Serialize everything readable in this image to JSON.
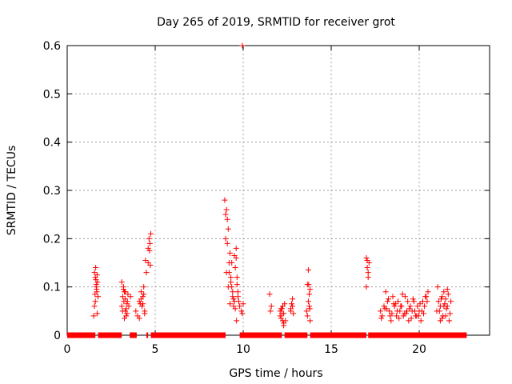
{
  "chart_data": {
    "type": "scatter",
    "title": "Day 265 of 2019, SRMTID for receiver grot",
    "xlabel": "GPS time / hours",
    "ylabel": "SRMTID / TECUs",
    "xlim": [
      0,
      24
    ],
    "ylim": [
      0,
      0.6
    ],
    "xticks": [
      0,
      5,
      10,
      15,
      20
    ],
    "yticks": [
      0,
      0.1,
      0.2,
      0.3,
      0.4,
      0.5,
      0.6
    ],
    "grid": true,
    "marker": "+",
    "colors": {
      "series": "#ff0000",
      "grid": "#a0a0a0",
      "axis": "#000000"
    },
    "series": [
      {
        "name": "SRMTID",
        "x": [
          1.5,
          1.55,
          1.6,
          1.62,
          1.65,
          1.68,
          1.7,
          1.72,
          1.75,
          1.55,
          1.6,
          1.65,
          1.7,
          1.58,
          1.63,
          1.67,
          3.1,
          3.15,
          3.2,
          3.22,
          3.25,
          3.3,
          3.35,
          3.4,
          3.45,
          3.1,
          3.2,
          3.3,
          3.25,
          3.35,
          3.4,
          3.15,
          3.3,
          3.42,
          3.5,
          3.6,
          3.9,
          4.0,
          4.1,
          4.2,
          4.25,
          4.3,
          4.35,
          4.4,
          4.45,
          4.5,
          4.2,
          4.3,
          4.4,
          4.1,
          4.35,
          4.15,
          4.6,
          4.65,
          4.7,
          4.72,
          4.75,
          4.6,
          4.68,
          8.95,
          9.0,
          9.05,
          9.1,
          9.15,
          9.2,
          9.25,
          9.3,
          9.35,
          9.4,
          9.45,
          9.5,
          9.55,
          9.6,
          9.65,
          9.7,
          9.75,
          9.8,
          9.0,
          9.1,
          9.2,
          9.3,
          9.4,
          9.5,
          9.6,
          9.7,
          9.05,
          9.15,
          9.25,
          9.35,
          9.45,
          9.55,
          9.65,
          9.9,
          9.95,
          10.0,
          9.95,
          9.62,
          11.5,
          11.6,
          11.55,
          12.1,
          12.15,
          12.2,
          12.25,
          12.3,
          12.35,
          12.2,
          12.3,
          12.25,
          12.1,
          12.4,
          12.15,
          12.3,
          12.7,
          12.75,
          12.8,
          12.85,
          12.7,
          12.8,
          13.6,
          13.65,
          13.7,
          13.75,
          13.8,
          13.7,
          13.75,
          13.65,
          13.8,
          13.72,
          13.78,
          17.0,
          17.05,
          17.1,
          17.15,
          17.0,
          17.1,
          17.05,
          17.8,
          17.9,
          18.0,
          18.1,
          18.2,
          18.3,
          18.4,
          18.5,
          18.6,
          18.7,
          18.8,
          18.9,
          19.0,
          19.1,
          19.2,
          19.3,
          19.4,
          19.5,
          19.6,
          19.7,
          19.8,
          19.9,
          20.0,
          20.1,
          20.2,
          20.3,
          20.4,
          20.5,
          17.85,
          18.05,
          18.25,
          18.45,
          18.65,
          18.85,
          19.05,
          19.25,
          19.45,
          19.65,
          19.85,
          20.05,
          20.25,
          20.45,
          18.15,
          18.35,
          18.55,
          18.75,
          18.95,
          19.15,
          19.35,
          19.55,
          19.75,
          19.95,
          20.15,
          20.35,
          21.0,
          21.1,
          21.2,
          21.3,
          21.4,
          21.5,
          21.6,
          21.7,
          21.8,
          21.05,
          21.15,
          21.25,
          21.35,
          21.45,
          21.55,
          21.65,
          21.75,
          21.2,
          21.4,
          21.6,
          21.3,
          21.5
        ],
        "y": [
          0.04,
          0.13,
          0.12,
          0.14,
          0.1,
          0.09,
          0.125,
          0.11,
          0.08,
          0.06,
          0.07,
          0.105,
          0.045,
          0.085,
          0.115,
          0.095,
          0.06,
          0.08,
          0.1,
          0.07,
          0.09,
          0.05,
          0.04,
          0.065,
          0.085,
          0.11,
          0.095,
          0.075,
          0.035,
          0.055,
          0.045,
          0.05,
          0.09,
          0.07,
          0.06,
          0.08,
          0.05,
          0.04,
          0.07,
          0.09,
          0.06,
          0.08,
          0.1,
          0.05,
          0.155,
          0.13,
          0.075,
          0.065,
          0.045,
          0.035,
          0.085,
          0.065,
          0.18,
          0.2,
          0.19,
          0.145,
          0.21,
          0.15,
          0.175,
          0.28,
          0.25,
          0.26,
          0.19,
          0.22,
          0.15,
          0.17,
          0.12,
          0.1,
          0.08,
          0.06,
          0.165,
          0.14,
          0.18,
          0.12,
          0.09,
          0.07,
          0.06,
          0.2,
          0.24,
          0.13,
          0.11,
          0.09,
          0.07,
          0.16,
          0.08,
          0.13,
          0.1,
          0.065,
          0.15,
          0.075,
          0.055,
          0.105,
          0.05,
          0.045,
          0.065,
          0.6,
          0.03,
          0.085,
          0.06,
          0.05,
          0.05,
          0.035,
          0.045,
          0.03,
          0.025,
          0.065,
          0.055,
          0.02,
          0.06,
          0.04,
          0.03,
          0.055,
          0.045,
          0.05,
          0.065,
          0.075,
          0.045,
          0.055,
          0.06,
          0.05,
          0.105,
          0.135,
          0.085,
          0.095,
          0.07,
          0.06,
          0.04,
          0.03,
          0.105,
          0.055,
          0.16,
          0.14,
          0.12,
          0.15,
          0.1,
          0.13,
          0.155,
          0.05,
          0.04,
          0.06,
          0.09,
          0.07,
          0.05,
          0.03,
          0.08,
          0.06,
          0.04,
          0.07,
          0.05,
          0.06,
          0.04,
          0.08,
          0.05,
          0.03,
          0.06,
          0.05,
          0.07,
          0.04,
          0.06,
          0.05,
          0.03,
          0.07,
          0.06,
          0.08,
          0.09,
          0.035,
          0.055,
          0.075,
          0.045,
          0.065,
          0.035,
          0.085,
          0.045,
          0.055,
          0.075,
          0.04,
          0.065,
          0.045,
          0.07,
          0.055,
          0.04,
          0.065,
          0.05,
          0.06,
          0.045,
          0.07,
          0.035,
          0.05,
          0.04,
          0.05,
          0.08,
          0.05,
          0.07,
          0.06,
          0.08,
          0.09,
          0.04,
          0.06,
          0.03,
          0.07,
          0.1,
          0.05,
          0.075,
          0.04,
          0.065,
          0.055,
          0.085,
          0.045,
          0.03,
          0.06,
          0.095,
          0.035,
          0.075
        ]
      }
    ],
    "zero_runs": [
      [
        0,
        1.6
      ],
      [
        1.75,
        3.1
      ],
      [
        3.55,
        3.95
      ],
      [
        4.5,
        4.6
      ],
      [
        4.75,
        9.0
      ],
      [
        9.8,
        12.2
      ],
      [
        12.35,
        13.65
      ],
      [
        13.8,
        17.0
      ],
      [
        17.1,
        22.7
      ]
    ]
  }
}
